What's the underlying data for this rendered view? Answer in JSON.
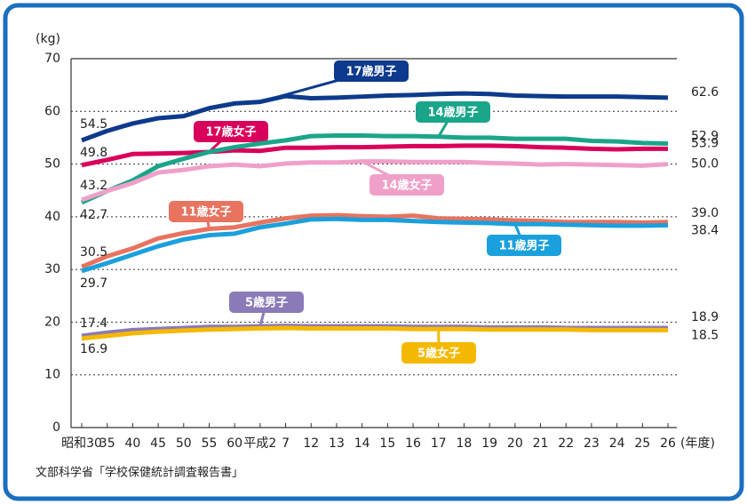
{
  "chart_data": {
    "type": "line",
    "y_label": "(kg)",
    "x_label": "(年度)",
    "source": "文部科学省「学校保健統計調査報告書」",
    "categories": [
      "昭和30",
      "35",
      "40",
      "45",
      "50",
      "55",
      "60",
      "平成2",
      "7",
      "12",
      "13",
      "14",
      "15",
      "16",
      "17",
      "18",
      "19",
      "20",
      "21",
      "22",
      "23",
      "24",
      "25",
      "26"
    ],
    "ylim": [
      0,
      70
    ],
    "yticks": [
      0,
      10,
      20,
      30,
      40,
      50,
      60,
      70
    ],
    "grid": true,
    "series": [
      {
        "name": "17歳男子",
        "color": "#0d3a8c",
        "values": [
          54.5,
          56.3,
          57.7,
          58.7,
          59.1,
          60.6,
          61.5,
          61.8,
          62.9,
          62.5,
          62.6,
          62.8,
          63.0,
          63.1,
          63.3,
          63.4,
          63.3,
          63.0,
          62.9,
          62.8,
          62.8,
          62.8,
          62.7,
          62.6
        ],
        "value_labels": [
          "54.5",
          null,
          null,
          null,
          null,
          null,
          null,
          null,
          null,
          null,
          null,
          null,
          null,
          null,
          null,
          null,
          null,
          null,
          null,
          null,
          null,
          null,
          null,
          "62.6"
        ]
      },
      {
        "name": "17歳女子",
        "color": "#d9005b",
        "values": [
          49.8,
          50.8,
          51.9,
          52.0,
          52.1,
          52.3,
          52.6,
          52.5,
          53.1,
          53.1,
          53.2,
          53.2,
          53.3,
          53.4,
          53.4,
          53.5,
          53.5,
          53.4,
          53.2,
          53.1,
          52.9,
          52.8,
          52.9,
          52.9
        ],
        "value_labels": [
          "49.8",
          null,
          null,
          null,
          null,
          null,
          null,
          null,
          null,
          null,
          null,
          null,
          null,
          null,
          null,
          null,
          null,
          null,
          null,
          null,
          null,
          null,
          null,
          "52.9"
        ]
      },
      {
        "name": "14歳男子",
        "color": "#1aa58a",
        "values": [
          42.7,
          44.9,
          46.9,
          49.6,
          51.0,
          52.3,
          53.2,
          53.9,
          54.5,
          55.3,
          55.4,
          55.4,
          55.3,
          55.3,
          55.2,
          55.0,
          55.0,
          54.8,
          54.8,
          54.8,
          54.4,
          54.3,
          54.0,
          53.9
        ],
        "value_labels": [
          "42.7",
          null,
          null,
          null,
          null,
          null,
          null,
          null,
          null,
          null,
          null,
          null,
          null,
          null,
          null,
          null,
          null,
          null,
          null,
          null,
          null,
          null,
          null,
          "53.9"
        ]
      },
      {
        "name": "14歳女子",
        "color": "#f0a0c8",
        "values": [
          43.2,
          44.9,
          46.4,
          48.4,
          48.9,
          49.6,
          49.9,
          49.6,
          50.1,
          50.3,
          50.3,
          50.5,
          50.5,
          50.4,
          50.4,
          50.4,
          50.2,
          50.1,
          49.9,
          50.0,
          49.9,
          49.8,
          49.7,
          50.0
        ],
        "value_labels": [
          "43.2",
          null,
          null,
          null,
          null,
          null,
          null,
          null,
          null,
          null,
          null,
          null,
          null,
          null,
          null,
          null,
          null,
          null,
          null,
          null,
          null,
          null,
          null,
          "50.0"
        ]
      },
      {
        "name": "11歳女子",
        "color": "#e8735f",
        "values": [
          30.5,
          32.5,
          34.0,
          35.9,
          36.9,
          37.7,
          38.0,
          38.9,
          39.7,
          40.2,
          40.3,
          40.1,
          40.0,
          40.2,
          39.7,
          39.6,
          39.5,
          39.3,
          39.2,
          39.0,
          39.0,
          39.0,
          38.9,
          39.0
        ],
        "value_labels": [
          "30.5",
          null,
          null,
          null,
          null,
          null,
          null,
          null,
          null,
          null,
          null,
          null,
          null,
          null,
          null,
          null,
          null,
          null,
          null,
          null,
          null,
          null,
          null,
          "39.0"
        ]
      },
      {
        "name": "11歳男子",
        "color": "#1aa0dc",
        "values": [
          29.7,
          31.2,
          32.8,
          34.4,
          35.7,
          36.5,
          36.8,
          38.0,
          38.7,
          39.5,
          39.6,
          39.4,
          39.4,
          39.2,
          39.0,
          38.9,
          38.8,
          38.6,
          38.6,
          38.5,
          38.4,
          38.3,
          38.3,
          38.4
        ],
        "value_labels": [
          "29.7",
          null,
          null,
          null,
          null,
          null,
          null,
          null,
          null,
          null,
          null,
          null,
          null,
          null,
          null,
          null,
          null,
          null,
          null,
          null,
          null,
          null,
          null,
          "38.4"
        ]
      },
      {
        "name": "5歳男子",
        "color": "#8a7ab8",
        "values": [
          17.4,
          18.0,
          18.5,
          18.7,
          18.9,
          19.1,
          19.1,
          19.2,
          19.3,
          19.2,
          19.2,
          19.2,
          19.2,
          19.1,
          19.1,
          19.1,
          19.0,
          19.0,
          19.0,
          18.9,
          18.9,
          18.9,
          18.9,
          18.9
        ],
        "value_labels": [
          "17.4",
          null,
          null,
          null,
          null,
          null,
          null,
          null,
          null,
          null,
          null,
          null,
          null,
          null,
          null,
          null,
          null,
          null,
          null,
          null,
          null,
          null,
          null,
          "18.9"
        ]
      },
      {
        "name": "5歳女子",
        "color": "#f5b800",
        "values": [
          16.9,
          17.4,
          17.9,
          18.2,
          18.4,
          18.6,
          18.7,
          18.8,
          18.9,
          18.8,
          18.8,
          18.8,
          18.8,
          18.7,
          18.7,
          18.7,
          18.6,
          18.6,
          18.6,
          18.6,
          18.5,
          18.5,
          18.5,
          18.5
        ],
        "value_labels": [
          "16.9",
          null,
          null,
          null,
          null,
          null,
          null,
          null,
          null,
          null,
          null,
          null,
          null,
          null,
          null,
          null,
          null,
          null,
          null,
          null,
          null,
          null,
          null,
          "18.5"
        ]
      }
    ]
  }
}
